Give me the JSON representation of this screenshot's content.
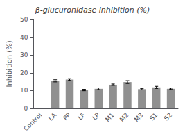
{
  "chart_data": {
    "type": "bar",
    "title": "β-glucuronidase inhibition (%)",
    "ylabel": "Inhibition (%)",
    "categories": [
      "Control",
      "LA",
      "PP",
      "LF",
      "LP",
      "M1",
      "M2",
      "M3",
      "S1",
      "S2"
    ],
    "values": [
      0,
      15.5,
      16.2,
      10.3,
      11.0,
      13.3,
      14.8,
      10.8,
      11.8,
      11.0
    ],
    "errors": [
      0,
      0.6,
      0.5,
      0.4,
      0.5,
      0.4,
      0.8,
      0.4,
      0.6,
      0.4
    ],
    "color": "#909090",
    "ylim": [
      0,
      50
    ],
    "yticks": [
      0,
      10,
      20,
      30,
      40,
      50
    ],
    "grid": false
  }
}
